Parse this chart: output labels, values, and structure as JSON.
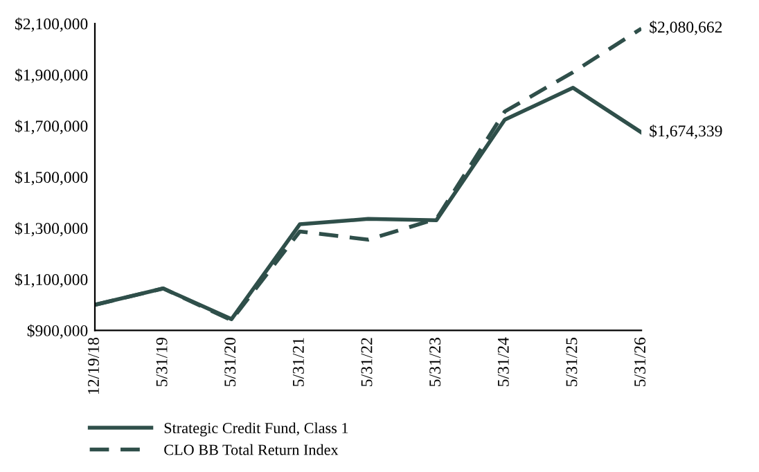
{
  "chart_data": {
    "type": "line",
    "categories": [
      "12/19/18",
      "5/31/19",
      "5/31/20",
      "5/31/21",
      "5/31/22",
      "5/31/23",
      "5/31/24",
      "5/31/25",
      "5/31/26"
    ],
    "series": [
      {
        "name": "Strategic Credit Fund, Class 1",
        "color": "#2f4f4a",
        "line_style": "solid",
        "values": [
          1000000,
          1064000,
          944000,
          1315000,
          1336000,
          1331000,
          1724000,
          1849000,
          1674339
        ],
        "value_labels": [
          null,
          null,
          null,
          null,
          null,
          null,
          null,
          null,
          "$1,674,339"
        ]
      },
      {
        "name": "CLO BB Total Return Index",
        "color": "#2f4f4a",
        "line_style": "dashed",
        "values": [
          1000000,
          1064000,
          940000,
          1287000,
          1255000,
          1336000,
          1756000,
          1910000,
          2080662
        ],
        "value_labels": [
          null,
          null,
          null,
          null,
          null,
          null,
          null,
          null,
          "$2,080,662"
        ]
      }
    ],
    "ylim": [
      900000,
      2100000
    ],
    "yticks": [
      {
        "value": 900000,
        "label": "$900,000"
      },
      {
        "value": 1100000,
        "label": "$1,100,000"
      },
      {
        "value": 1300000,
        "label": "$1,300,000"
      },
      {
        "value": 1500000,
        "label": "$1,500,000"
      },
      {
        "value": 1700000,
        "label": "$1,700,000"
      },
      {
        "value": 1900000,
        "label": "$1,900,000"
      },
      {
        "value": 2100000,
        "label": "$2,100,000"
      }
    ],
    "grid": false,
    "legend": "bottom",
    "marker": "none"
  }
}
